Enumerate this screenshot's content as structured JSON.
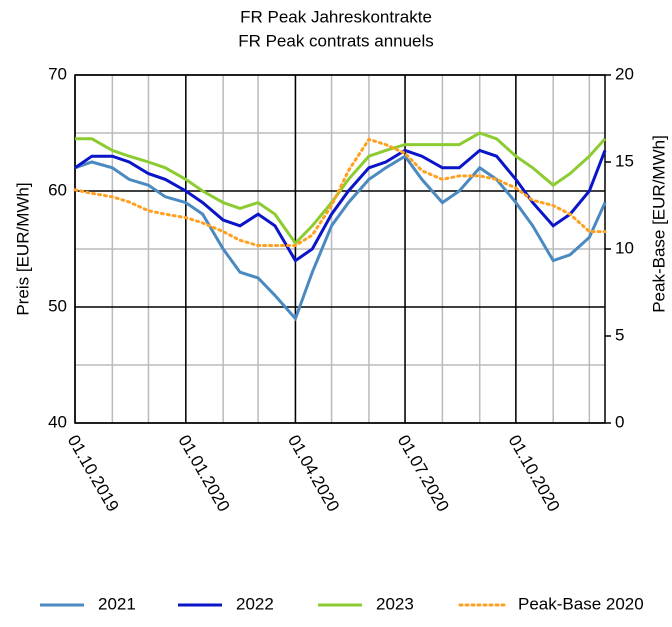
{
  "chart_data": {
    "type": "line",
    "title": "FR Peak Jahreskontrakte",
    "subtitle": "FR Peak contrats annuels",
    "ylabel": "Preis [EUR/MWh]",
    "y2label": "Peak-Base [EUR/MWh]",
    "x": [
      "01.10.2019",
      "15.10.2019",
      "01.11.2019",
      "15.11.2019",
      "01.12.2019",
      "15.12.2019",
      "01.01.2020",
      "15.01.2020",
      "01.02.2020",
      "15.02.2020",
      "01.03.2020",
      "15.03.2020",
      "01.04.2020",
      "15.04.2020",
      "01.05.2020",
      "15.05.2020",
      "01.06.2020",
      "15.06.2020",
      "01.07.2020",
      "15.07.2020",
      "01.08.2020",
      "15.08.2020",
      "01.09.2020",
      "15.09.2020",
      "01.10.2020",
      "15.10.2020",
      "01.11.2020",
      "15.11.2020",
      "01.12.2020",
      "14.12.2020"
    ],
    "xlim": [
      "01.10.2019",
      "14.12.2020"
    ],
    "xticks": [
      "01.10.2019",
      "01.01.2020",
      "01.04.2020",
      "01.07.2020",
      "01.10.2020"
    ],
    "ylim": [
      40,
      70
    ],
    "yticks": [
      40,
      50,
      60,
      70
    ],
    "yminor": [
      45,
      55,
      65
    ],
    "y2lim": [
      0,
      20
    ],
    "y2ticks": [
      0,
      5,
      10,
      15,
      20
    ],
    "grid": true,
    "legend": "bottom",
    "series": [
      {
        "name": "2021",
        "color": "#4a8ac0",
        "values": [
          62,
          62.5,
          62,
          61,
          60.5,
          59.5,
          59,
          58,
          55,
          53,
          52.5,
          51,
          49,
          53,
          57,
          59,
          61,
          62,
          63,
          61,
          59,
          60,
          62,
          61,
          59,
          57,
          54,
          54.5,
          56,
          59
        ]
      },
      {
        "name": "2022",
        "color": "#0a14c8",
        "values": [
          62,
          63,
          63,
          62.5,
          61.5,
          61,
          60,
          59,
          57.5,
          57,
          58,
          57,
          54,
          55,
          58,
          60,
          62,
          62.5,
          63.5,
          63,
          62,
          62,
          63.5,
          63,
          61,
          59,
          57,
          58,
          60,
          63.5
        ]
      },
      {
        "name": "2023",
        "color": "#8ccc30",
        "values": [
          64.5,
          64.5,
          63.5,
          63,
          62.5,
          62,
          61,
          60,
          59,
          58.5,
          59,
          58,
          55.5,
          57,
          59,
          61,
          63,
          63.5,
          64,
          64,
          64,
          64,
          65,
          64.5,
          63,
          62,
          60.5,
          61.5,
          63,
          64.5
        ]
      },
      {
        "name": "Peak-Base 2020",
        "color": "#ffa020",
        "axis": "y2",
        "dash": true,
        "values": [
          13.4,
          13.2,
          13,
          12.7,
          12.2,
          12,
          11.8,
          11.5,
          11,
          10.5,
          10.2,
          10.2,
          10.2,
          10.8,
          12.5,
          14.5,
          16.3,
          16,
          15.5,
          14.5,
          14,
          14.2,
          14.2,
          14,
          13.5,
          12.8,
          12.5,
          12,
          11,
          11
        ]
      }
    ]
  }
}
